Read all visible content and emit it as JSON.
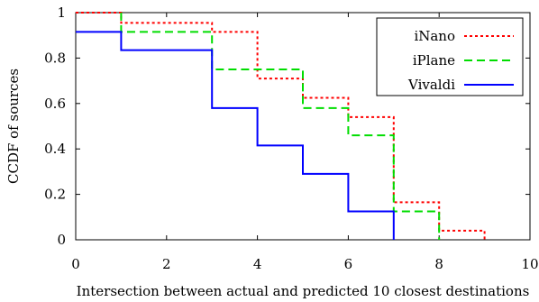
{
  "chart_data": {
    "type": "line",
    "step": true,
    "xlabel": "Intersection between actual and predicted 10 closest destinations",
    "ylabel": "CCDF of sources",
    "xlim": [
      0,
      10
    ],
    "ylim": [
      0,
      1
    ],
    "x_ticks": [
      "0",
      "2",
      "4",
      "6",
      "8",
      "10"
    ],
    "y_ticks": [
      "0",
      "0.2",
      "0.4",
      "0.6",
      "0.8",
      "1"
    ],
    "x_tick_values": [
      0,
      2,
      4,
      6,
      8,
      10
    ],
    "y_tick_values": [
      0,
      0.2,
      0.4,
      0.6,
      0.8,
      1
    ],
    "grid": false,
    "legend_position": "top-right",
    "series": [
      {
        "name": "iNano",
        "color": "#ff0000",
        "dash": "dotted",
        "points": [
          [
            0,
            1.0
          ],
          [
            1,
            0.955
          ],
          [
            3,
            0.915
          ],
          [
            4,
            0.875
          ],
          [
            4,
            0.71
          ],
          [
            5,
            0.665
          ],
          [
            5,
            0.625
          ],
          [
            6,
            0.585
          ],
          [
            6,
            0.54
          ],
          [
            7,
            0.5
          ],
          [
            7,
            0.165
          ],
          [
            8,
            0.125
          ],
          [
            8,
            0.04
          ],
          [
            9,
            0.0
          ]
        ]
      },
      {
        "name": "iPlane",
        "color": "#00dd00",
        "dash": "dashed",
        "points": [
          [
            1,
            1.0
          ],
          [
            1,
            0.915
          ],
          [
            3,
            0.83
          ],
          [
            3,
            0.75
          ],
          [
            5,
            0.705
          ],
          [
            5,
            0.58
          ],
          [
            6,
            0.54
          ],
          [
            6,
            0.46
          ],
          [
            7,
            0.415
          ],
          [
            7,
            0.125
          ],
          [
            8,
            0.085
          ],
          [
            8,
            0.0
          ]
        ]
      },
      {
        "name": "Vivaldi",
        "color": "#0000ff",
        "dash": "solid",
        "points": [
          [
            0,
            0.915
          ],
          [
            1,
            0.875
          ],
          [
            1,
            0.835
          ],
          [
            3,
            0.75
          ],
          [
            3,
            0.58
          ],
          [
            4,
            0.54
          ],
          [
            4,
            0.415
          ],
          [
            5,
            0.375
          ],
          [
            5,
            0.29
          ],
          [
            6,
            0.25
          ],
          [
            6,
            0.125
          ],
          [
            7,
            0.085
          ],
          [
            7,
            0.0
          ]
        ]
      }
    ]
  }
}
